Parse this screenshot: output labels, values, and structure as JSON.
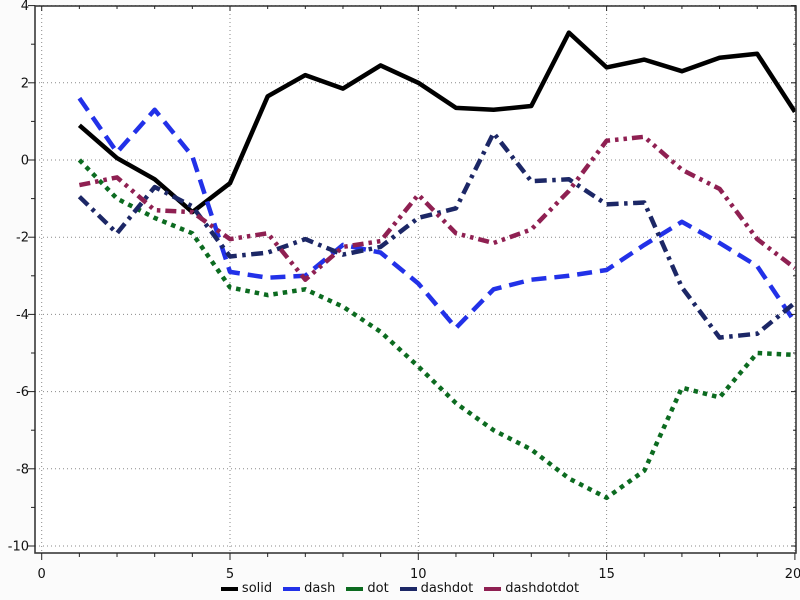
{
  "chart_data": {
    "type": "line",
    "title": "",
    "xlabel": "",
    "ylabel": "",
    "grid": true,
    "legend_position": "bottom-center",
    "xlim": [
      -0.2,
      20.05
    ],
    "ylim": [
      -10.2,
      4.05
    ],
    "x_ticks": [
      0,
      5,
      10,
      15,
      20
    ],
    "y_ticks": [
      4,
      2,
      0,
      -2,
      -4,
      -6,
      -8,
      -10
    ],
    "x_minor_tick_step": 1,
    "y_minor_tick_step": 1,
    "x": [
      1,
      2,
      3,
      4,
      5,
      6,
      7,
      8,
      9,
      10,
      11,
      12,
      13,
      14,
      15,
      16,
      17,
      18,
      19,
      20
    ],
    "series": [
      {
        "name": "solid",
        "color": "#000000",
        "dash": "solid",
        "values": [
          0.9,
          0.05,
          -0.5,
          -1.35,
          -0.6,
          1.65,
          2.2,
          1.85,
          2.45,
          2.0,
          1.35,
          1.3,
          1.4,
          3.3,
          2.4,
          2.6,
          2.3,
          2.65,
          2.75,
          1.25
        ]
      },
      {
        "name": "dash",
        "color": "#2231e8",
        "dash": "dash",
        "values": [
          1.6,
          0.2,
          1.3,
          0.1,
          -2.9,
          -3.05,
          -3.0,
          -2.2,
          -2.4,
          -3.2,
          -4.35,
          -3.35,
          -3.1,
          -3.0,
          -2.85,
          -2.2,
          -1.6,
          -2.15,
          -2.75,
          -4.2
        ]
      },
      {
        "name": "dot",
        "color": "#0c6b20",
        "dash": "dot",
        "values": [
          0.0,
          -1.0,
          -1.5,
          -1.9,
          -3.3,
          -3.5,
          -3.35,
          -3.8,
          -4.45,
          -5.35,
          -6.3,
          -7.0,
          -7.5,
          -8.25,
          -8.75,
          -8.05,
          -5.9,
          -6.15,
          -5.0,
          -5.05
        ]
      },
      {
        "name": "dashdot",
        "color": "#1c2766",
        "dash": "dashdot",
        "values": [
          -0.95,
          -1.9,
          -0.7,
          -1.2,
          -2.5,
          -2.4,
          -2.05,
          -2.45,
          -2.25,
          -1.5,
          -1.25,
          0.7,
          -0.55,
          -0.5,
          -1.15,
          -1.1,
          -3.3,
          -4.6,
          -4.5,
          -3.7
        ]
      },
      {
        "name": "dashdotdot",
        "color": "#8f2052",
        "dash": "dashdotdot",
        "values": [
          -0.65,
          -0.45,
          -1.3,
          -1.35,
          -2.05,
          -1.9,
          -3.1,
          -2.25,
          -2.1,
          -0.9,
          -1.9,
          -2.15,
          -1.8,
          -0.8,
          0.5,
          0.6,
          -0.25,
          -0.75,
          -2.05,
          -2.8
        ]
      }
    ]
  }
}
